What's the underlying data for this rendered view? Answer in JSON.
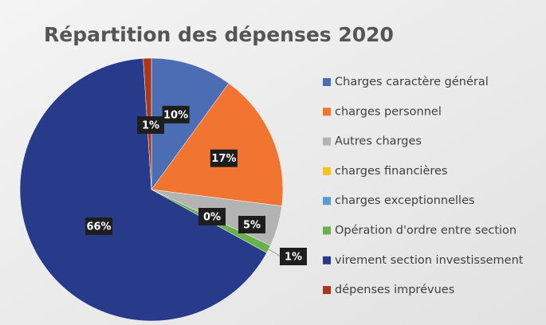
{
  "chart_data": {
    "type": "pie",
    "title": "Répartition des dépenses 2020",
    "categories": [
      "Charges caractère général",
      "charges personnel",
      "Autres charges",
      "charges financières",
      "charges exceptionnelles",
      "Opération d'ordre entre section",
      "virement section investissement",
      "dépenses imprévues"
    ],
    "values": [
      10,
      17,
      5,
      0,
      0,
      1,
      66,
      1
    ],
    "value_labels": [
      "10%",
      "17%",
      "5%",
      "0%",
      null,
      "1%",
      "66%",
      "1%"
    ],
    "colors": [
      "#4a6db4",
      "#f27431",
      "#b3b3b3",
      "#f7c21c",
      "#5b9bd5",
      "#6ab04c",
      "#283a8a",
      "#a8381c"
    ],
    "legend": "right"
  }
}
